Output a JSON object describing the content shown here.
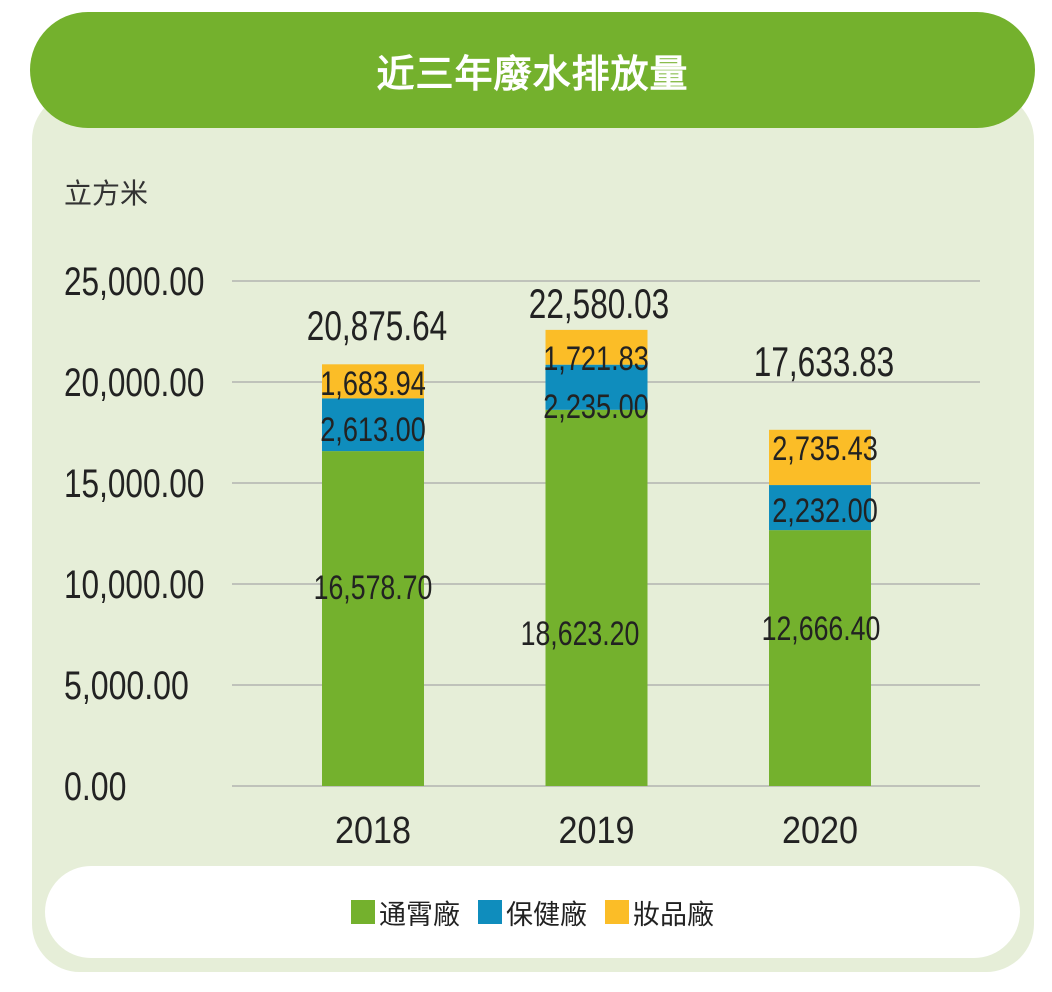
{
  "title": "近三年廢水排放量",
  "unit_label": "立方米",
  "colors": {
    "series_0": "#74b12d",
    "series_1": "#0f8dbd",
    "series_2": "#fbbd27",
    "grid": "#a8a8a8",
    "text": "#222222"
  },
  "chart_data": {
    "type": "bar",
    "stacked": true,
    "title": "近三年廢水排放量",
    "ylabel": "立方米",
    "xlabel": "",
    "categories": [
      "2018",
      "2019",
      "2020"
    ],
    "series": [
      {
        "name": "通霄廠",
        "values": [
          16578.7,
          18623.2,
          12666.4
        ],
        "labels": [
          "16,578.70",
          "18,623.20",
          "12,666.40"
        ]
      },
      {
        "name": "保健廠",
        "values": [
          2613.0,
          2235.0,
          2232.0
        ],
        "labels": [
          "2,613.00",
          "2,235.00",
          "2,232.00"
        ]
      },
      {
        "name": "妝品廠",
        "values": [
          1683.94,
          1721.83,
          2735.43
        ],
        "labels": [
          "1,683.94",
          "1,721.83",
          "2,735.43"
        ]
      }
    ],
    "totals": [
      "20,875.64",
      "22,580.03",
      "17,633.83"
    ],
    "ylim": [
      0,
      25000
    ],
    "yticks": [
      0,
      5000,
      10000,
      15000,
      20000,
      25000
    ],
    "ytick_labels": [
      "0.00",
      "5,000.00",
      "10,000.00",
      "15,000.00",
      "20,000.00",
      "25,000.00"
    ],
    "grid": true,
    "legend_position": "bottom"
  }
}
